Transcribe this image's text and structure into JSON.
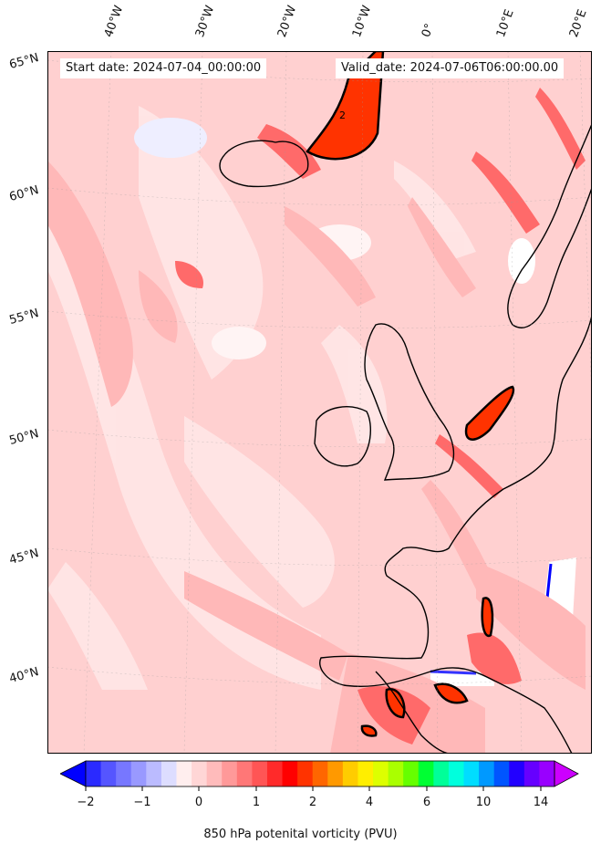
{
  "header": {
    "start_label": "Start date: 2024-07-04_00:00:00",
    "valid_label": "Valid_date: 2024-07-06T06:00:00.00"
  },
  "lon_labels": [
    "40°W",
    "30°W",
    "20°W",
    "10°W",
    "0°",
    "10°E",
    "20°E"
  ],
  "lat_labels": [
    "65°N",
    "60°N",
    "55°N",
    "50°N",
    "45°N",
    "40°N"
  ],
  "colorbar": {
    "label": "850 hPa potenital vorticity (PVU)",
    "ticks": [
      "−2",
      "−1",
      "0",
      "1",
      "2",
      "4",
      "6",
      "10",
      "14"
    ],
    "colors": [
      "#0000ff",
      "#2a2aff",
      "#5555ff",
      "#7777ff",
      "#9999ff",
      "#bbbbff",
      "#ddddff",
      "#ffeeee",
      "#ffd6d6",
      "#ffbbbb",
      "#ff9999",
      "#ff7777",
      "#ff5555",
      "#ff2a2a",
      "#ff0000",
      "#ff3300",
      "#ff6600",
      "#ff9900",
      "#ffcc00",
      "#ffee00",
      "#ddff00",
      "#aaff00",
      "#66ff00",
      "#00ff33",
      "#00ff99",
      "#00ffdd",
      "#00ddff",
      "#0099ff",
      "#0055ff",
      "#2200ff",
      "#6600ff",
      "#9900ff",
      "#cc00ff"
    ]
  },
  "map": {
    "background_color": "#ffd0d0",
    "field_colors": [
      "#ffe6e6",
      "#ffb8b8",
      "#ff8a8a",
      "#ff4a4a",
      "#ff2200",
      "#eeeeff",
      "#0000ff",
      "#ffffff"
    ],
    "coastline_color": "#000000"
  }
}
